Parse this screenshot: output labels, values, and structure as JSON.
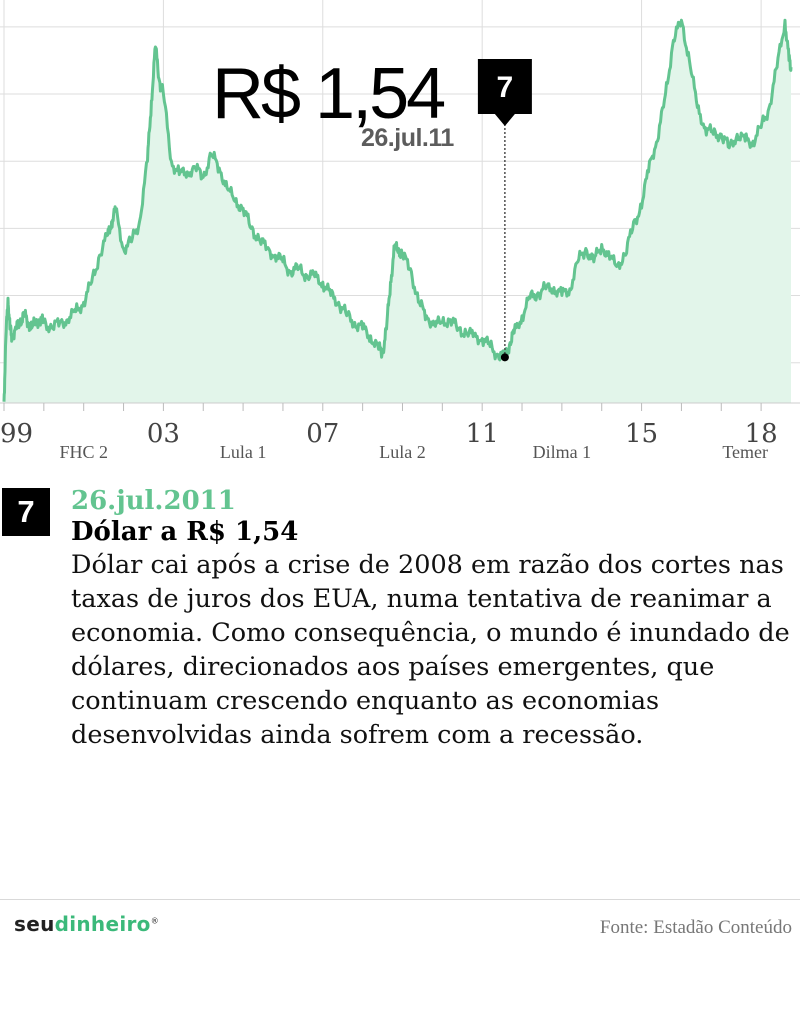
{
  "highlight": {
    "value": "R$ 1,54",
    "marker": "7",
    "date_short": "26.jul.11",
    "date_long": "26.jul.2011",
    "title": "Dólar a R$ 1,54",
    "description": "Dólar cai após a crise de 2008 em razão dos cortes nas taxas de juros dos EUA, numa tentativa de reanimar a economia. Como consequência, o mundo é inundado de dólares, direcionados aos países emergentes, que continuam crescendo enquanto as economias desenvolvidas ainda sofrem com a recessão."
  },
  "footer": {
    "logo_part1": "seu",
    "logo_part2": "dinheiro",
    "logo_mark": "®",
    "source": "Fonte: Estadão Conteúdo"
  },
  "colors": {
    "line": "#63c490",
    "area": "#e2f5ea",
    "grid": "#dddddd",
    "accent": "#63c490",
    "marker": "#000000"
  },
  "chart_data": {
    "type": "area",
    "title": "",
    "xlabel": "",
    "ylabel": "",
    "x_ticks": [
      {
        "year": 1999,
        "label": "99"
      },
      {
        "year": 2003,
        "label": "03"
      },
      {
        "year": 2007,
        "label": "07"
      },
      {
        "year": 2011,
        "label": "11"
      },
      {
        "year": 2015,
        "label": "15"
      },
      {
        "year": 2018,
        "label": "18"
      }
    ],
    "periods": [
      {
        "label": "FHC 2",
        "start": 1999.0,
        "end": 2003.0
      },
      {
        "label": "Lula 1",
        "start": 2003.0,
        "end": 2007.0
      },
      {
        "label": "Lula 2",
        "start": 2007.0,
        "end": 2011.0
      },
      {
        "label": "Dilma 1",
        "start": 2011.0,
        "end": 2015.0
      },
      {
        "label": "Temer",
        "start": 2016.4,
        "end": 2018.8
      }
    ],
    "xlim": [
      1999.0,
      2018.75
    ],
    "ylim": [
      1.2,
      4.2
    ],
    "grid": true,
    "annotation": {
      "x": 2011.57,
      "y": 1.54,
      "label": "R$ 1,54",
      "date": "26.jul.11",
      "marker": "7"
    },
    "series": [
      {
        "x": [
          1999.0,
          1999.05,
          1999.1,
          1999.15,
          1999.2,
          1999.3,
          1999.4,
          1999.5,
          1999.6,
          1999.7,
          1999.8,
          1999.9,
          2000.0,
          2000.2,
          2000.4,
          2000.6,
          2000.8,
          2001.0,
          2001.2,
          2001.4,
          2001.6,
          2001.7,
          2001.8,
          2002.0,
          2002.2,
          2002.4,
          2002.6,
          2002.7,
          2002.8,
          2002.9,
          2003.0,
          2003.2,
          2003.4,
          2003.6,
          2003.8,
          2004.0,
          2004.2,
          2004.4,
          2004.6,
          2004.8,
          2005.0,
          2005.2,
          2005.4,
          2005.6,
          2005.8,
          2006.0,
          2006.2,
          2006.4,
          2006.6,
          2006.8,
          2007.0,
          2007.2,
          2007.4,
          2007.6,
          2007.8,
          2008.0,
          2008.2,
          2008.4,
          2008.5,
          2008.6,
          2008.7,
          2008.8,
          2008.9,
          2009.0,
          2009.2,
          2009.4,
          2009.6,
          2009.8,
          2010.0,
          2010.2,
          2010.4,
          2010.6,
          2010.8,
          2011.0,
          2011.2,
          2011.4,
          2011.57,
          2011.7,
          2011.8,
          2012.0,
          2012.2,
          2012.4,
          2012.6,
          2012.8,
          2013.0,
          2013.2,
          2013.4,
          2013.6,
          2013.8,
          2014.0,
          2014.2,
          2014.4,
          2014.6,
          2014.8,
          2015.0,
          2015.2,
          2015.4,
          2015.6,
          2015.8,
          2016.0,
          2016.2,
          2016.4,
          2016.6,
          2016.8,
          2017.0,
          2017.2,
          2017.4,
          2017.6,
          2017.8,
          2018.0,
          2018.2,
          2018.4,
          2018.6,
          2018.7,
          2018.75
        ],
        "y": [
          1.21,
          1.7,
          1.98,
          1.75,
          1.7,
          1.75,
          1.8,
          1.86,
          1.8,
          1.76,
          1.8,
          1.82,
          1.8,
          1.76,
          1.8,
          1.82,
          1.88,
          1.95,
          2.1,
          2.3,
          2.45,
          2.55,
          2.63,
          2.35,
          2.4,
          2.55,
          3.0,
          3.45,
          3.85,
          3.6,
          3.5,
          3.0,
          2.9,
          2.92,
          2.95,
          2.88,
          3.05,
          2.95,
          2.8,
          2.7,
          2.65,
          2.5,
          2.42,
          2.35,
          2.3,
          2.25,
          2.18,
          2.2,
          2.15,
          2.14,
          2.1,
          2.0,
          1.95,
          1.85,
          1.8,
          1.75,
          1.7,
          1.6,
          1.58,
          1.75,
          2.1,
          2.35,
          2.35,
          2.3,
          2.2,
          1.95,
          1.85,
          1.78,
          1.8,
          1.82,
          1.75,
          1.72,
          1.7,
          1.68,
          1.62,
          1.56,
          1.54,
          1.65,
          1.72,
          1.85,
          1.98,
          2.02,
          2.05,
          2.06,
          2.0,
          2.05,
          2.25,
          2.35,
          2.25,
          2.38,
          2.27,
          2.23,
          2.3,
          2.55,
          2.65,
          3.0,
          3.15,
          3.5,
          3.9,
          4.05,
          3.75,
          3.4,
          3.25,
          3.2,
          3.2,
          3.1,
          3.2,
          3.15,
          3.15,
          3.25,
          3.4,
          3.7,
          4.05,
          3.75,
          3.7
        ]
      }
    ]
  }
}
